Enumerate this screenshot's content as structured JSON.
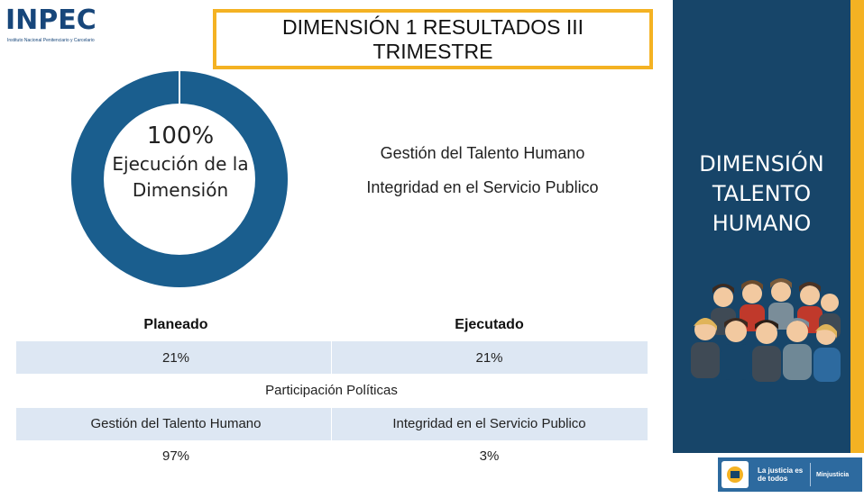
{
  "logo": {
    "wordmark": "INPEC",
    "subtitle": "Instituto Nacional Penitenciario y Carcelario"
  },
  "title": "DIMENSIÓN 1 RESULTADOS  III TRIMESTRE",
  "donut": {
    "percent_text": "100%",
    "percent": 100,
    "label": "Ejecución de la Dimensión",
    "color": "#1a5e8e"
  },
  "sub_dimensions": [
    "Gestión del Talento Humano",
    "Integridad en el Servicio Publico"
  ],
  "execution_table": {
    "headers": [
      "Planeado",
      "Ejecutado"
    ],
    "values": [
      "21%",
      "21%"
    ]
  },
  "participation": {
    "title": "Participación Políticas",
    "labels": [
      "Gestión del Talento Humano",
      "Integridad en el Servicio Publico"
    ],
    "values": [
      "97%",
      "3%"
    ]
  },
  "side_panel": {
    "title": "DIMENSIÓN TALENTO HUMANO",
    "color": "#174569",
    "accent": "#f4b223"
  },
  "footer": {
    "gov_text": "La justicia es de todos",
    "ministry": "Minjusticia"
  },
  "colors": {
    "band": "#dde7f3",
    "title_border": "#f4b223"
  }
}
